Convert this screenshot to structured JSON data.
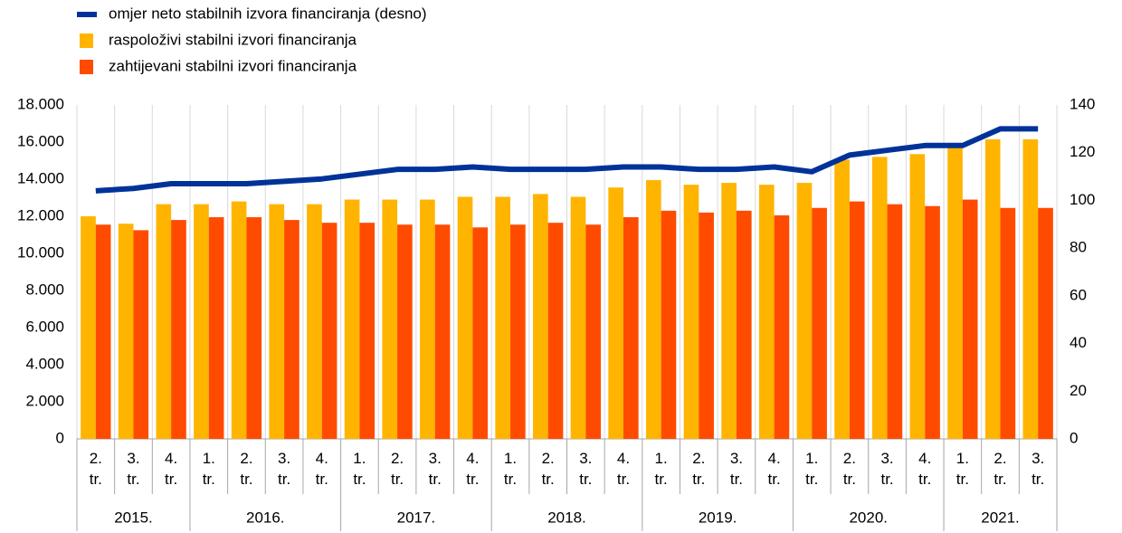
{
  "chart_data": {
    "type": "bar_line",
    "groups": [
      {
        "label": "2015.",
        "quarters": [
          "2. tr.",
          "3. tr.",
          "4. tr."
        ]
      },
      {
        "label": "2016.",
        "quarters": [
          "1. tr.",
          "2. tr.",
          "3. tr.",
          "4. tr."
        ]
      },
      {
        "label": "2017.",
        "quarters": [
          "1. tr.",
          "2. tr.",
          "3. tr.",
          "4. tr."
        ]
      },
      {
        "label": "2018.",
        "quarters": [
          "1. tr.",
          "2. tr.",
          "3. tr.",
          "4. tr."
        ]
      },
      {
        "label": "2019.",
        "quarters": [
          "1. tr.",
          "2. tr.",
          "3. tr.",
          "4. tr."
        ]
      },
      {
        "label": "2020.",
        "quarters": [
          "1. tr.",
          "2. tr.",
          "3. tr.",
          "4. tr."
        ]
      },
      {
        "label": "2021.",
        "quarters": [
          "1. tr.",
          "2. tr.",
          "3. tr."
        ]
      }
    ],
    "series": [
      {
        "name": "omjer neto stabilnih izvora financiranja (desno)",
        "type": "line",
        "axis": "y2",
        "color": "#003299",
        "values": [
          104,
          105,
          107,
          107,
          107,
          108,
          109,
          111,
          113,
          113,
          114,
          113,
          113,
          113,
          114,
          114,
          113,
          113,
          114,
          112,
          119,
          121,
          123,
          123,
          130,
          130
        ]
      },
      {
        "name": "raspoloživi stabilni izvori financiranja",
        "type": "bar",
        "color": "#ffb400",
        "values": [
          12000,
          11600,
          12650,
          12650,
          12800,
          12650,
          12650,
          12900,
          12900,
          12900,
          13050,
          13050,
          13200,
          13050,
          13550,
          13950,
          13700,
          13800,
          13700,
          13800,
          15050,
          15200,
          15350,
          15850,
          16150,
          16150
        ]
      },
      {
        "name": "zahtijevani stabilni izvori financiranja",
        "type": "bar",
        "color": "#ff4b00",
        "values": [
          11550,
          11250,
          11800,
          11950,
          11950,
          11800,
          11650,
          11650,
          11550,
          11550,
          11400,
          11550,
          11650,
          11550,
          11950,
          12300,
          12200,
          12300,
          12050,
          12450,
          12800,
          12650,
          12550,
          12900,
          12450,
          12450
        ]
      }
    ],
    "ylim": [
      0,
      18000
    ],
    "yticks": [
      0,
      {
        "value": 2000,
        "label": "2.000"
      },
      {
        "value": 4000,
        "label": "4.000"
      },
      {
        "value": 6000,
        "label": "6.000"
      },
      {
        "value": 8000,
        "label": "8.000"
      },
      {
        "value": 10000,
        "label": "10.000"
      },
      {
        "value": 12000,
        "label": "12.000"
      },
      {
        "value": 14000,
        "label": "14.000"
      },
      {
        "value": 16000,
        "label": "16.000"
      },
      {
        "value": 18000,
        "label": "18.000"
      }
    ],
    "y2lim": [
      0,
      140
    ],
    "y2ticks": [
      0,
      20,
      40,
      60,
      80,
      100,
      120,
      140
    ],
    "legend": "top-left"
  }
}
